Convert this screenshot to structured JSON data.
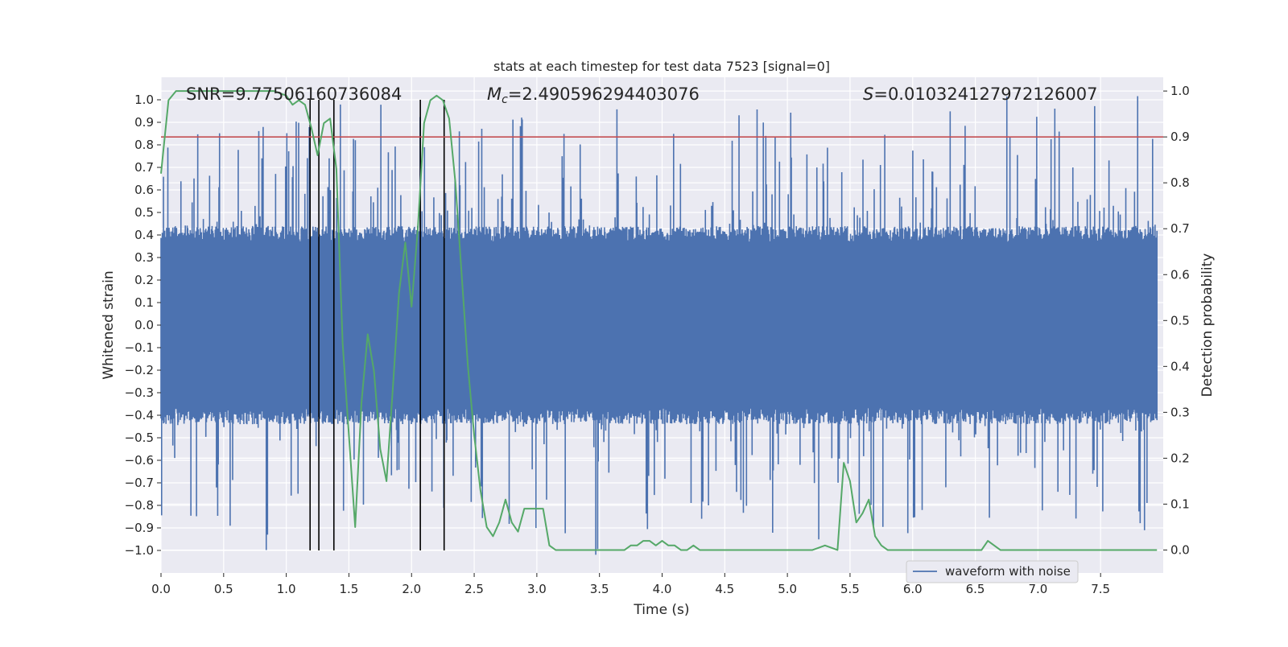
{
  "chart_data": {
    "type": "line",
    "title": "stats at each timestep for test data 7523 [signal=0]",
    "xlabel": "Time (s)",
    "ylabel_left": "Whitened strain",
    "ylabel_right": "Detection probability",
    "xlim": [
      0.0,
      8.0
    ],
    "ylim_left": [
      -1.1,
      1.1
    ],
    "ylim_right": [
      -0.05,
      1.03
    ],
    "x_ticks": [
      "0.0",
      "0.5",
      "1.0",
      "1.5",
      "2.0",
      "2.5",
      "3.0",
      "3.5",
      "4.0",
      "4.5",
      "5.0",
      "5.5",
      "6.0",
      "6.5",
      "7.0",
      "7.5"
    ],
    "y_left_ticks": [
      "1.0",
      "0.9",
      "0.8",
      "0.7",
      "0.6",
      "0.5",
      "0.4",
      "0.3",
      "0.2",
      "0.1",
      "0.0",
      "−0.1",
      "−0.2",
      "−0.3",
      "−0.4",
      "−0.5",
      "−0.6",
      "−0.7",
      "−0.8",
      "−0.9",
      "−1.0"
    ],
    "y_right_ticks": [
      "1.0",
      "0.9",
      "0.8",
      "0.7",
      "0.6",
      "0.5",
      "0.4",
      "0.3",
      "0.2",
      "0.1",
      "0.0"
    ],
    "annotations": {
      "snr": "SNR=9.77506160736084",
      "mc_symbol": "M",
      "mc_subscript": "c",
      "mc_value": "=2.490596294403076",
      "s_symbol": "S",
      "s_value": "=0.010324127972126007"
    },
    "threshold": {
      "value": 0.9,
      "axis": "right",
      "color": "#c44e52"
    },
    "event_markers": {
      "times": [
        1.19,
        1.26,
        1.38,
        2.07,
        2.26
      ],
      "y_range": [
        -1.0,
        1.0
      ],
      "color": "#000000"
    },
    "series": [
      {
        "name": "waveform with noise",
        "axis": "left",
        "color": "#4c72b0",
        "kind": "noise",
        "sample_count": 1600,
        "core_amplitude": 0.4,
        "peak_upper": 0.99,
        "peak_lower": -1.0,
        "seed": 7523
      },
      {
        "name": "detection probability",
        "axis": "right",
        "color": "#55a868",
        "x": [
          0.0,
          0.06,
          0.12,
          0.2,
          0.3,
          0.4,
          0.5,
          0.6,
          0.7,
          0.8,
          0.9,
          1.0,
          1.05,
          1.1,
          1.15,
          1.2,
          1.25,
          1.3,
          1.35,
          1.4,
          1.45,
          1.5,
          1.55,
          1.6,
          1.65,
          1.7,
          1.75,
          1.8,
          1.85,
          1.9,
          1.95,
          2.0,
          2.05,
          2.1,
          2.15,
          2.2,
          2.25,
          2.3,
          2.35,
          2.4,
          2.45,
          2.5,
          2.55,
          2.6,
          2.65,
          2.7,
          2.75,
          2.8,
          2.85,
          2.9,
          2.95,
          3.0,
          3.05,
          3.1,
          3.15,
          3.2,
          3.3,
          3.4,
          3.5,
          3.6,
          3.7,
          3.75,
          3.8,
          3.85,
          3.9,
          3.95,
          4.0,
          4.05,
          4.1,
          4.15,
          4.2,
          4.25,
          4.3,
          4.35,
          4.4,
          4.5,
          4.6,
          4.7,
          4.8,
          4.9,
          5.0,
          5.1,
          5.2,
          5.3,
          5.4,
          5.45,
          5.5,
          5.55,
          5.6,
          5.65,
          5.7,
          5.75,
          5.8,
          5.85,
          5.9,
          6.0,
          6.1,
          6.2,
          6.3,
          6.4,
          6.5,
          6.55,
          6.6,
          6.7,
          6.8,
          6.9,
          7.0,
          7.1,
          7.2,
          7.3,
          7.4,
          7.5,
          7.6,
          7.7,
          7.8,
          7.9,
          7.95
        ],
        "values": [
          0.82,
          0.98,
          1.0,
          1.0,
          1.0,
          1.0,
          1.0,
          1.0,
          1.0,
          1.0,
          1.0,
          0.99,
          0.97,
          0.98,
          0.97,
          0.92,
          0.86,
          0.93,
          0.94,
          0.83,
          0.45,
          0.25,
          0.05,
          0.32,
          0.47,
          0.39,
          0.22,
          0.15,
          0.35,
          0.56,
          0.67,
          0.53,
          0.7,
          0.93,
          0.98,
          0.99,
          0.98,
          0.94,
          0.8,
          0.6,
          0.4,
          0.25,
          0.13,
          0.05,
          0.03,
          0.06,
          0.11,
          0.06,
          0.04,
          0.09,
          0.09,
          0.09,
          0.09,
          0.01,
          0.0,
          0.0,
          0.0,
          0.0,
          0.0,
          0.0,
          0.0,
          0.01,
          0.01,
          0.02,
          0.02,
          0.01,
          0.02,
          0.01,
          0.01,
          0.0,
          0.0,
          0.01,
          0.0,
          0.0,
          0.0,
          0.0,
          0.0,
          0.0,
          0.0,
          0.0,
          0.0,
          0.0,
          0.0,
          0.01,
          0.0,
          0.19,
          0.15,
          0.06,
          0.08,
          0.11,
          0.03,
          0.01,
          0.0,
          0.0,
          0.0,
          0.0,
          0.0,
          0.0,
          0.0,
          0.0,
          0.0,
          0.0,
          0.02,
          0.0,
          0.0,
          0.0,
          0.0,
          0.0,
          0.0,
          0.0,
          0.0,
          0.0,
          0.0,
          0.0,
          0.0,
          0.0,
          0.0
        ]
      }
    ],
    "legend": {
      "position": "lower-right",
      "entries": [
        "waveform with noise"
      ]
    },
    "colors": {
      "plot_background": "#eaeaf2",
      "grid": "#ffffff",
      "text": "#262626"
    }
  }
}
